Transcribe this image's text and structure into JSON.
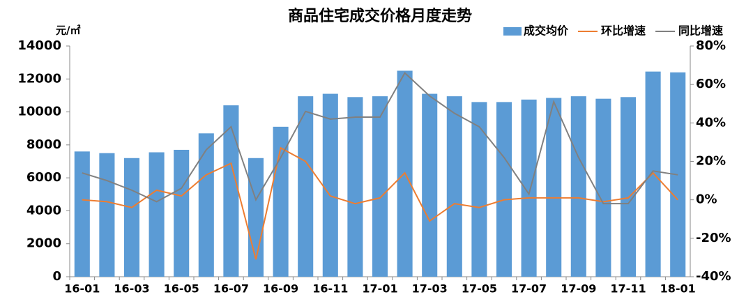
{
  "chart_data": {
    "type": "bar",
    "title": "商品住宅成交价格月度走势",
    "y_label": "元/㎡",
    "categories": [
      "16-01",
      null,
      "16-03",
      null,
      "16-05",
      null,
      "16-07",
      null,
      "16-09",
      null,
      "16-11",
      null,
      "17-01",
      null,
      "17-03",
      null,
      "17-05",
      null,
      "17-07",
      null,
      "17-09",
      null,
      "17-11",
      null,
      "18-01"
    ],
    "series": [
      {
        "name": "成交均价",
        "color": "#5b9bd5",
        "values": [
          7600,
          7500,
          7200,
          7550,
          7700,
          8700,
          10400,
          7200,
          9100,
          10950,
          11100,
          10900,
          10950,
          12500,
          11100,
          10950,
          10600,
          10600,
          10750,
          10850,
          10950,
          10800,
          10900,
          12450,
          12400
        ]
      },
      {
        "name": "环比增速",
        "color": "#ed7d31",
        "axis": "y2",
        "values": [
          0,
          -1,
          -4,
          5,
          2,
          13,
          19,
          -31,
          27,
          20,
          2,
          -2,
          1,
          14,
          -11,
          -2,
          -4,
          0,
          1,
          1,
          1,
          -1,
          1,
          14,
          0
        ]
      },
      {
        "name": "同比增速",
        "color": "#808080",
        "axis": "y2",
        "values": [
          14,
          10,
          5,
          -1,
          6,
          26,
          38,
          0,
          22,
          46,
          42,
          43,
          43,
          66,
          54,
          45,
          38,
          22,
          3,
          51,
          22,
          -2,
          -2,
          15,
          13
        ]
      }
    ],
    "ylim": [
      0,
      14000
    ],
    "yticks": [
      0,
      2000,
      4000,
      6000,
      8000,
      10000,
      12000,
      14000
    ],
    "y2lim": [
      -40,
      80
    ],
    "y2ticks": [
      {
        "value": -40,
        "label": "-40%"
      },
      {
        "value": -20,
        "label": "-20%"
      },
      {
        "value": 0,
        "label": "0%"
      },
      {
        "value": 20,
        "label": "20%"
      },
      {
        "value": 40,
        "label": "40%"
      },
      {
        "value": 60,
        "label": "60%"
      },
      {
        "value": 80,
        "label": "80%"
      }
    ],
    "legend": "top-right",
    "grid": false
  }
}
